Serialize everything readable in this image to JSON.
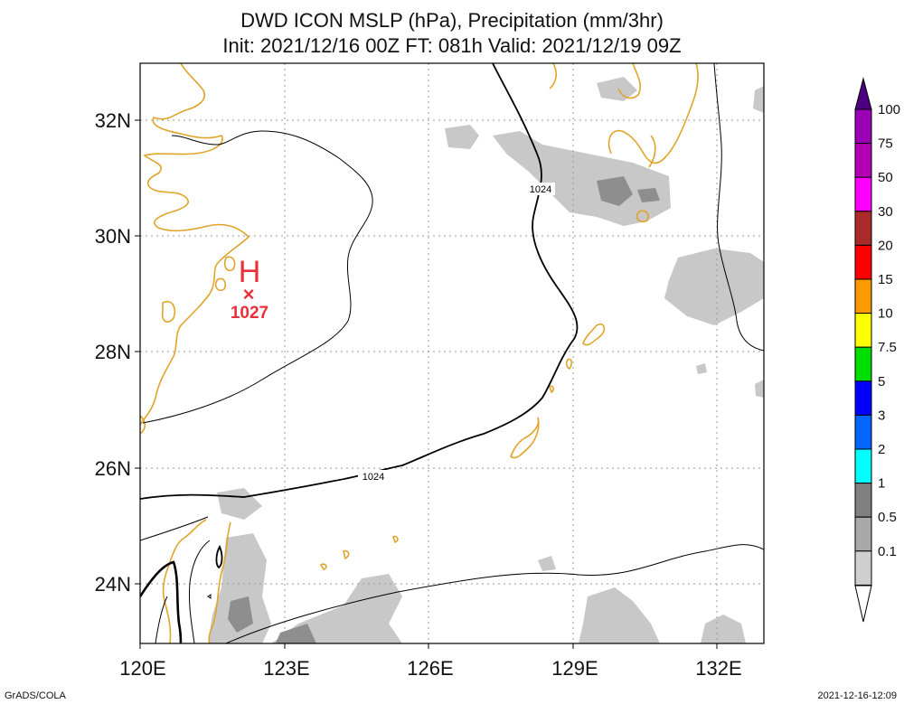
{
  "title_line1": "DWD ICON MSLP (hPa), Precipitation (mm/3hr)",
  "title_line2": "Init: 2021/12/16 00Z  FT: 081h  Valid: 2021/12/19 09Z",
  "lon_ticks": [
    "120E",
    "123E",
    "126E",
    "129E",
    "132E"
  ],
  "lat_ticks": [
    "32N",
    "30N",
    "28N",
    "26N",
    "24N"
  ],
  "high_center": {
    "symbol": "H",
    "marker": "×",
    "value": "1027"
  },
  "isobar_labels": [
    "1024",
    "1024"
  ],
  "colorbar": {
    "levels": [
      "100",
      "75",
      "50",
      "30",
      "20",
      "15",
      "10",
      "7.5",
      "5",
      "3",
      "2",
      "1",
      "0.5",
      "0.1"
    ],
    "colors": [
      "#9b00b4",
      "#b400b4",
      "#ff00ff",
      "#aa2a2a",
      "#ff0000",
      "#ff9900",
      "#ffff00",
      "#00dd00",
      "#0000ff",
      "#0066ff",
      "#00ffff",
      "#808080",
      "#a9a9a9",
      "#cfcfcf"
    ],
    "top_color": "#4b0082",
    "bottom_color": "#ffffff"
  },
  "colors": {
    "coastline": "#e0a42b",
    "isobar": "#000000",
    "high": "#e8303a",
    "grid": "#9a9a9a"
  },
  "footer_left": "GrADS/COLA",
  "footer_right": "2021-12-16-12:09"
}
